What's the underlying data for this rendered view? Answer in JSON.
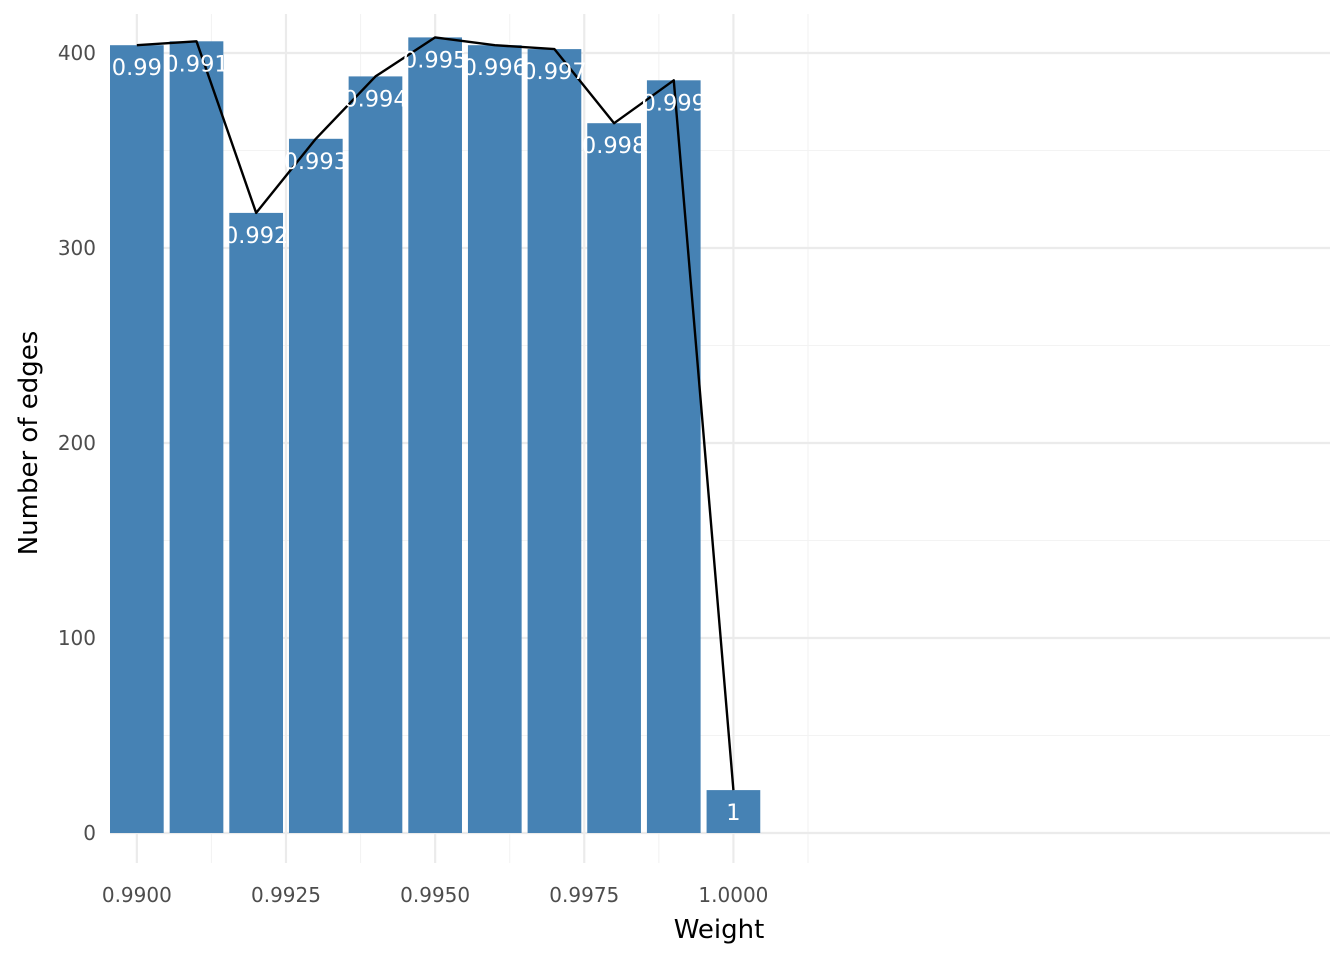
{
  "chart_data": {
    "type": "bar",
    "title": "",
    "xlabel": "Weight",
    "ylabel": "Number of edges",
    "x": [
      0.99,
      0.991,
      0.992,
      0.993,
      0.994,
      0.995,
      0.996,
      0.997,
      0.998,
      0.999,
      1.0
    ],
    "values": [
      404,
      406,
      318,
      356,
      388,
      408,
      404,
      402,
      364,
      386,
      22
    ],
    "line_values": [
      404,
      406,
      318,
      356,
      388,
      408,
      404,
      402,
      364,
      386,
      22
    ],
    "bar_labels": [
      "0.99",
      "0.991",
      "0.992",
      "0.993",
      "0.994",
      "0.995",
      "0.996",
      "0.997",
      "0.998",
      "0.999",
      "1"
    ],
    "xlim": [
      0.98955,
      1.01
    ],
    "ylim": [
      0,
      420
    ],
    "x_ticks": [
      0.99,
      0.9925,
      0.995,
      0.9975,
      1.0
    ],
    "x_tick_labels": [
      "0.9900",
      "0.9925",
      "0.9950",
      "0.9975",
      "1.0000"
    ],
    "y_ticks": [
      0,
      100,
      200,
      300,
      400
    ],
    "y_tick_labels": [
      "0",
      "100",
      "200",
      "300",
      "400"
    ],
    "grid": true,
    "legend": "none",
    "colors": {
      "bar": "#4682b4",
      "line": "#000000",
      "grid_major": "#ebebeb",
      "grid_minor": "#f3f3f3",
      "bar_label": "#ffffff",
      "tick_text": "#4d4d4d"
    }
  }
}
